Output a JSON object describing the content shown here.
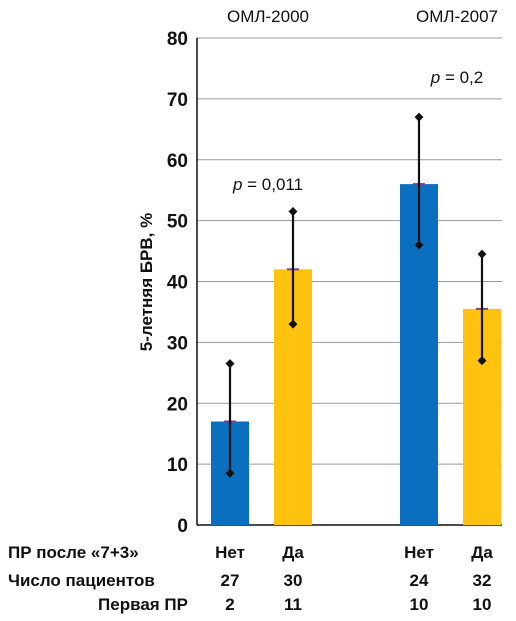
{
  "chart_data": {
    "type": "bar",
    "ylabel": "5-летняя БРВ, %",
    "ylim": [
      0,
      80
    ],
    "yticks": [
      0,
      10,
      20,
      30,
      40,
      50,
      60,
      70,
      80
    ],
    "grid": true,
    "groups": [
      {
        "name": "ОМЛ-2000",
        "p_label": "p",
        "p_value": " = 0,011",
        "bars": [
          {
            "category": "Нет",
            "value": 17,
            "err_low": 8.5,
            "err_high": 26.5,
            "patients": "27",
            "first_pr": "2",
            "color": "#0B6FBF"
          },
          {
            "category": "Да",
            "value": 42,
            "err_low": 33,
            "err_high": 51.5,
            "patients": "30",
            "first_pr": "11",
            "color": "#FFC20E"
          }
        ]
      },
      {
        "name": "ОМЛ-2007",
        "p_label": "p",
        "p_value": " = 0,2",
        "bars": [
          {
            "category": "Нет",
            "value": 56,
            "err_low": 46,
            "err_high": 67,
            "patients": "24",
            "first_pr": "10",
            "color": "#0B6FBF"
          },
          {
            "category": "Да",
            "value": 35.5,
            "err_low": 27,
            "err_high": 44.5,
            "patients": "32",
            "first_pr": "10",
            "color": "#FFC20E"
          }
        ]
      }
    ],
    "row_labels": {
      "category_row": "ПР после «7+3»",
      "patients_row": "Число пациентов",
      "first_pr_row": "Первая ПР"
    }
  }
}
